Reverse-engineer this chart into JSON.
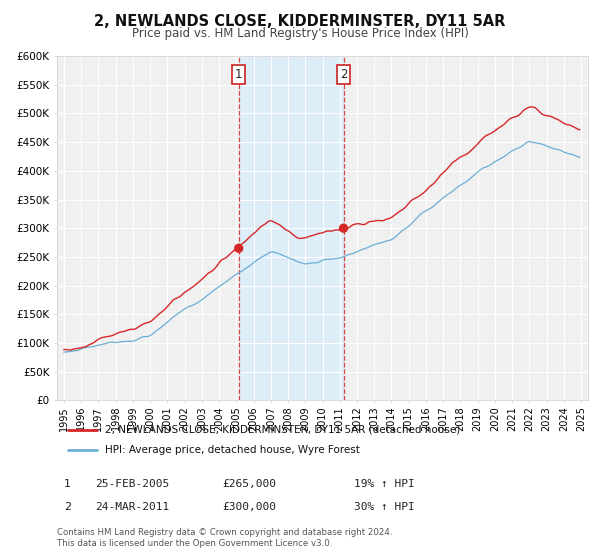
{
  "title": "2, NEWLANDS CLOSE, KIDDERMINSTER, DY11 5AR",
  "subtitle": "Price paid vs. HM Land Registry's House Price Index (HPI)",
  "ylim": [
    0,
    600000
  ],
  "yticks": [
    0,
    50000,
    100000,
    150000,
    200000,
    250000,
    300000,
    350000,
    400000,
    450000,
    500000,
    550000,
    600000
  ],
  "ytick_labels": [
    "£0",
    "£50K",
    "£100K",
    "£150K",
    "£200K",
    "£250K",
    "£300K",
    "£350K",
    "£400K",
    "£450K",
    "£500K",
    "£550K",
    "£600K"
  ],
  "hpi_color": "#6baed6",
  "price_color": "#d62728",
  "shading_color": "#ddeef8",
  "marker1_date": 2005.14,
  "marker2_date": 2011.22,
  "marker1_price": 265000,
  "marker2_price": 300000,
  "marker1_hpi_label": "25-FEB-2005",
  "marker2_hpi_label": "24-MAR-2011",
  "marker1_amount": "£265,000",
  "marker2_amount": "£300,000",
  "marker1_pct": "19% ↑ HPI",
  "marker2_pct": "30% ↑ HPI",
  "legend_line1": "2, NEWLANDS CLOSE, KIDDERMINSTER, DY11 5AR (detached house)",
  "legend_line2": "HPI: Average price, detached house, Wyre Forest",
  "footnote1": "Contains HM Land Registry data © Crown copyright and database right 2024.",
  "footnote2": "This data is licensed under the Open Government Licence v3.0.",
  "background_color": "#ffffff",
  "plot_bg_color": "#f0f0f0",
  "grid_color": "#ffffff"
}
